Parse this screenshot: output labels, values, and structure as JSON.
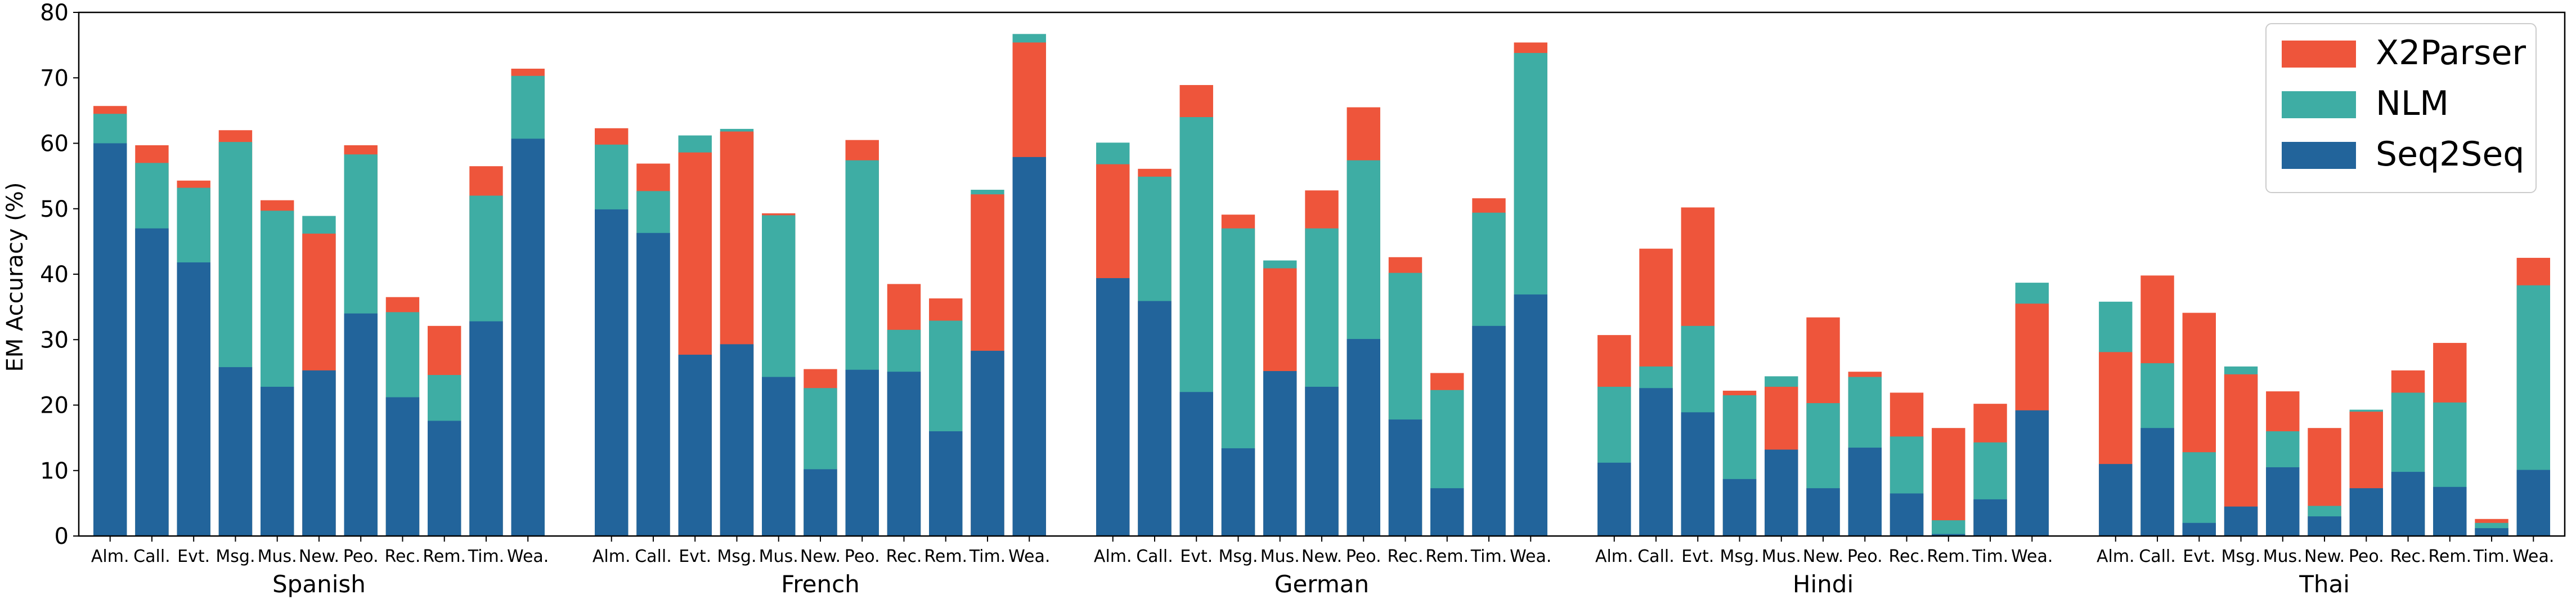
{
  "chart_data": {
    "type": "bar",
    "stacked": true,
    "ylabel": "EM Accuracy (%)",
    "xlabel": "",
    "ylim": [
      0,
      80
    ],
    "yticks": [
      0,
      10,
      20,
      30,
      40,
      50,
      60,
      70,
      80
    ],
    "legend": {
      "placement": "top-right",
      "entries": [
        {
          "name": "X2Parser",
          "color": "#ee553b"
        },
        {
          "name": "NLM",
          "color": "#3eada4"
        },
        {
          "name": "Seq2Seq",
          "color": "#22649b"
        }
      ]
    },
    "categories": [
      "Alm.",
      "Call.",
      "Evt.",
      "Msg.",
      "Mus.",
      "New.",
      "Peo.",
      "Rec.",
      "Rem.",
      "Tim.",
      "Wea."
    ],
    "groups": [
      {
        "name": "Spanish",
        "bars": [
          {
            "seq2seq": 60.0,
            "nlm": 64.5,
            "x2parser": 65.7
          },
          {
            "seq2seq": 47.0,
            "nlm": 57.0,
            "x2parser": 59.7
          },
          {
            "seq2seq": 41.8,
            "nlm": 53.2,
            "x2parser": 54.3
          },
          {
            "seq2seq": 25.8,
            "nlm": 60.2,
            "x2parser": 62.0
          },
          {
            "seq2seq": 22.8,
            "nlm": 49.7,
            "x2parser": 51.3
          },
          {
            "seq2seq": 25.3,
            "nlm": 48.9,
            "x2parser": 46.2
          },
          {
            "seq2seq": 34.0,
            "nlm": 58.3,
            "x2parser": 59.7
          },
          {
            "seq2seq": 21.2,
            "nlm": 34.2,
            "x2parser": 36.5
          },
          {
            "seq2seq": 17.6,
            "nlm": 24.6,
            "x2parser": 32.1
          },
          {
            "seq2seq": 32.8,
            "nlm": 52.0,
            "x2parser": 56.5
          },
          {
            "seq2seq": 60.7,
            "nlm": 70.3,
            "x2parser": 71.4
          }
        ]
      },
      {
        "name": "French",
        "bars": [
          {
            "seq2seq": 49.9,
            "nlm": 59.8,
            "x2parser": 62.3
          },
          {
            "seq2seq": 46.3,
            "nlm": 52.7,
            "x2parser": 56.9
          },
          {
            "seq2seq": 27.7,
            "nlm": 61.2,
            "x2parser": 58.6
          },
          {
            "seq2seq": 29.3,
            "nlm": 62.2,
            "x2parser": 61.8
          },
          {
            "seq2seq": 24.3,
            "nlm": 49.0,
            "x2parser": 49.3
          },
          {
            "seq2seq": 10.2,
            "nlm": 22.6,
            "x2parser": 25.5
          },
          {
            "seq2seq": 25.4,
            "nlm": 57.4,
            "x2parser": 60.5
          },
          {
            "seq2seq": 25.1,
            "nlm": 31.5,
            "x2parser": 38.5
          },
          {
            "seq2seq": 16.0,
            "nlm": 32.9,
            "x2parser": 36.3
          },
          {
            "seq2seq": 28.3,
            "nlm": 52.9,
            "x2parser": 52.2
          },
          {
            "seq2seq": 57.9,
            "nlm": 76.7,
            "x2parser": 75.4
          }
        ]
      },
      {
        "name": "German",
        "bars": [
          {
            "seq2seq": 39.4,
            "nlm": 60.1,
            "x2parser": 56.8
          },
          {
            "seq2seq": 35.9,
            "nlm": 54.9,
            "x2parser": 56.1
          },
          {
            "seq2seq": 22.0,
            "nlm": 64.0,
            "x2parser": 68.9
          },
          {
            "seq2seq": 13.4,
            "nlm": 47.0,
            "x2parser": 49.1
          },
          {
            "seq2seq": 25.2,
            "nlm": 42.1,
            "x2parser": 40.9
          },
          {
            "seq2seq": 22.8,
            "nlm": 47.0,
            "x2parser": 52.8
          },
          {
            "seq2seq": 30.1,
            "nlm": 57.4,
            "x2parser": 65.5
          },
          {
            "seq2seq": 17.8,
            "nlm": 40.2,
            "x2parser": 42.6
          },
          {
            "seq2seq": 7.3,
            "nlm": 22.3,
            "x2parser": 24.9
          },
          {
            "seq2seq": 32.1,
            "nlm": 49.4,
            "x2parser": 51.6
          },
          {
            "seq2seq": 36.9,
            "nlm": 73.8,
            "x2parser": 75.4
          }
        ]
      },
      {
        "name": "Hindi",
        "bars": [
          {
            "seq2seq": 11.2,
            "nlm": 22.8,
            "x2parser": 30.7
          },
          {
            "seq2seq": 22.6,
            "nlm": 25.9,
            "x2parser": 43.9
          },
          {
            "seq2seq": 18.9,
            "nlm": 32.1,
            "x2parser": 50.2
          },
          {
            "seq2seq": 8.7,
            "nlm": 21.5,
            "x2parser": 22.2
          },
          {
            "seq2seq": 13.2,
            "nlm": 24.4,
            "x2parser": 22.8
          },
          {
            "seq2seq": 7.3,
            "nlm": 20.3,
            "x2parser": 33.4
          },
          {
            "seq2seq": 13.5,
            "nlm": 24.3,
            "x2parser": 25.1
          },
          {
            "seq2seq": 6.5,
            "nlm": 15.2,
            "x2parser": 21.9
          },
          {
            "seq2seq": 0.3,
            "nlm": 2.4,
            "x2parser": 16.5
          },
          {
            "seq2seq": 5.6,
            "nlm": 14.3,
            "x2parser": 20.2
          },
          {
            "seq2seq": 19.2,
            "nlm": 38.7,
            "x2parser": 35.5
          }
        ]
      },
      {
        "name": "Thai",
        "bars": [
          {
            "seq2seq": 11.0,
            "nlm": 35.8,
            "x2parser": 28.1
          },
          {
            "seq2seq": 16.5,
            "nlm": 26.4,
            "x2parser": 39.8
          },
          {
            "seq2seq": 2.0,
            "nlm": 12.8,
            "x2parser": 34.1
          },
          {
            "seq2seq": 4.5,
            "nlm": 25.9,
            "x2parser": 24.7
          },
          {
            "seq2seq": 10.5,
            "nlm": 16.0,
            "x2parser": 22.1
          },
          {
            "seq2seq": 3.0,
            "nlm": 4.6,
            "x2parser": 16.5
          },
          {
            "seq2seq": 7.3,
            "nlm": 19.3,
            "x2parser": 19.0
          },
          {
            "seq2seq": 9.8,
            "nlm": 21.9,
            "x2parser": 25.3
          },
          {
            "seq2seq": 7.5,
            "nlm": 20.4,
            "x2parser": 29.5
          },
          {
            "seq2seq": 1.2,
            "nlm": 2.0,
            "x2parser": 2.6
          },
          {
            "seq2seq": 10.1,
            "nlm": 38.3,
            "x2parser": 42.5
          }
        ]
      }
    ]
  }
}
